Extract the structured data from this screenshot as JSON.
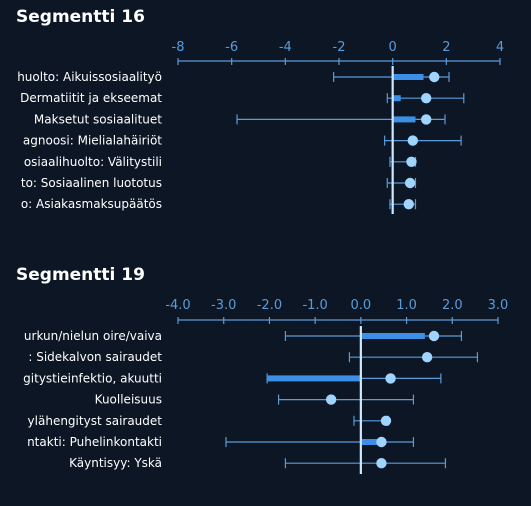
{
  "colors": {
    "background": "#0d1624",
    "axis": "#5b9bd9",
    "whisker": "#5b9bd9",
    "bar": "#3d8ee6",
    "point": "#9fd4ff",
    "zero_line": "#cfe8ff",
    "text": "#ffffff"
  },
  "chart_data": [
    {
      "type": "scatter",
      "title": "Segmentti 16",
      "xlim": [
        -8,
        4
      ],
      "ticks": [
        -8,
        -6,
        -4,
        -2,
        0,
        2,
        4
      ],
      "tick_labels": [
        "-8",
        "-6",
        "-4",
        "-2",
        "0",
        "2",
        "4"
      ],
      "categories": [
        "huolto: Aikuissosiaalityö",
        "Dermatiitit ja ekseemat",
        "Maksetut sosiaalituet",
        "agnoosi: Mielialahäiriöt",
        "osiaalihuolto: Välitystili",
        "to: Sosiaalinen luototus",
        "o: Asiakasmaksupäätös"
      ],
      "estimate": [
        1.55,
        1.25,
        1.25,
        0.75,
        0.7,
        0.65,
        0.6
      ],
      "bar": [
        1.15,
        0.3,
        0.85,
        0.0,
        0.0,
        0.0,
        0.0
      ],
      "ci_low": [
        -2.2,
        -0.2,
        -5.8,
        -0.3,
        -0.1,
        -0.2,
        -0.1
      ],
      "ci_high": [
        2.1,
        2.65,
        1.95,
        2.55,
        0.85,
        0.85,
        0.85
      ]
    },
    {
      "type": "scatter",
      "title": "Segmentti 19",
      "xlim": [
        -4.0,
        3.0
      ],
      "ticks": [
        -4,
        -3,
        -2,
        -1,
        0,
        1,
        2,
        3
      ],
      "tick_labels": [
        "-4.0",
        "-3.0",
        "-2.0",
        "-1.0",
        "0.0",
        "1.0",
        "2.0",
        "3.0"
      ],
      "categories": [
        "urkun/nielun oire/vaiva",
        ": Sidekalvon sairaudet",
        "gitystieinfektio, akuutti",
        "Kuolleisuus",
        "ylähengityst sairaudet",
        "ntakti: Puhelinkontakti",
        "Käyntisyy: Yskä"
      ],
      "estimate": [
        1.6,
        1.45,
        0.65,
        -0.65,
        0.55,
        0.45,
        0.45
      ],
      "bar": [
        1.4,
        0.0,
        -2.05,
        0.0,
        0.0,
        0.55,
        0.0
      ],
      "ci_low": [
        -1.65,
        -0.25,
        -2.05,
        -1.8,
        -0.15,
        -2.95,
        -1.65
      ],
      "ci_high": [
        2.2,
        2.55,
        1.75,
        1.15,
        0.6,
        1.15,
        1.85
      ]
    }
  ]
}
